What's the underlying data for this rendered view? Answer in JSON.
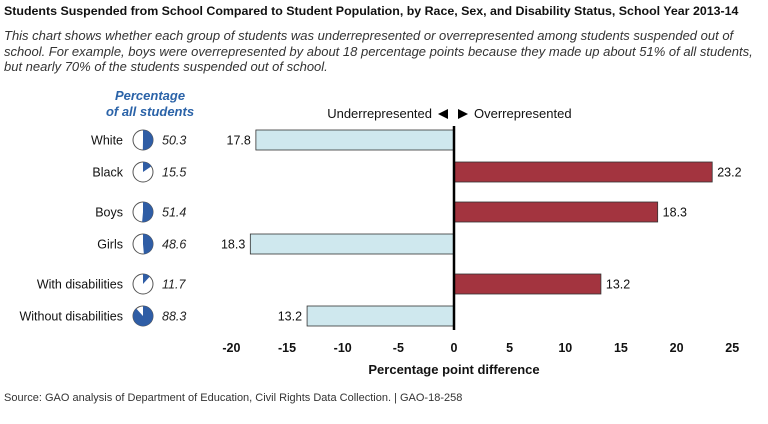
{
  "title": "Students Suspended from School Compared to Student Population, by Race, Sex, and Disability Status, School Year 2013-14",
  "subtitle": "This chart shows whether each group of students was underrepresented or overrepresented among students suspended out of school. For example, boys were overrepresented by about 18 percentage points because they made up about 51% of all students, but nearly 70% of the students suspended out of school.",
  "source": "Source: GAO analysis of Department of Education, Civil Rights Data Collection.  |  GAO-18-258",
  "colors": {
    "over": "#a3343f",
    "under": "#cfe8ee",
    "pie": "#2f5da5",
    "axis": "#000000"
  },
  "chart_data": {
    "type": "bar",
    "orientation": "horizontal",
    "pct_header_line1": "Percentage",
    "pct_header_line2": "of all students",
    "direction_label_under": "Underrepresented",
    "direction_label_over": "Overrepresented",
    "xlabel": "Percentage point difference",
    "xlim": [
      -20,
      25
    ],
    "xticks": [
      -20,
      -15,
      -10,
      -5,
      0,
      5,
      10,
      15,
      20,
      25
    ],
    "grid": false,
    "groups": [
      {
        "name": "race",
        "rows": [
          0,
          1
        ]
      },
      {
        "name": "sex",
        "rows": [
          2,
          3
        ]
      },
      {
        "name": "disability",
        "rows": [
          4,
          5
        ]
      }
    ],
    "rows": [
      {
        "label": "White",
        "pct_of_students": 50.3,
        "pct_text": "50.3",
        "difference": -17.8,
        "value_text": "17.8"
      },
      {
        "label": "Black",
        "pct_of_students": 15.5,
        "pct_text": "15.5",
        "difference": 23.2,
        "value_text": "23.2"
      },
      {
        "label": "Boys",
        "pct_of_students": 51.4,
        "pct_text": "51.4",
        "difference": 18.3,
        "value_text": "18.3"
      },
      {
        "label": "Girls",
        "pct_of_students": 48.6,
        "pct_text": "48.6",
        "difference": -18.3,
        "value_text": "18.3"
      },
      {
        "label": "With disabilities",
        "pct_of_students": 11.7,
        "pct_text": "11.7",
        "difference": 13.2,
        "value_text": "13.2"
      },
      {
        "label": "Without disabilities",
        "pct_of_students": 88.3,
        "pct_text": "88.3",
        "difference": -13.2,
        "value_text": "13.2"
      }
    ]
  }
}
